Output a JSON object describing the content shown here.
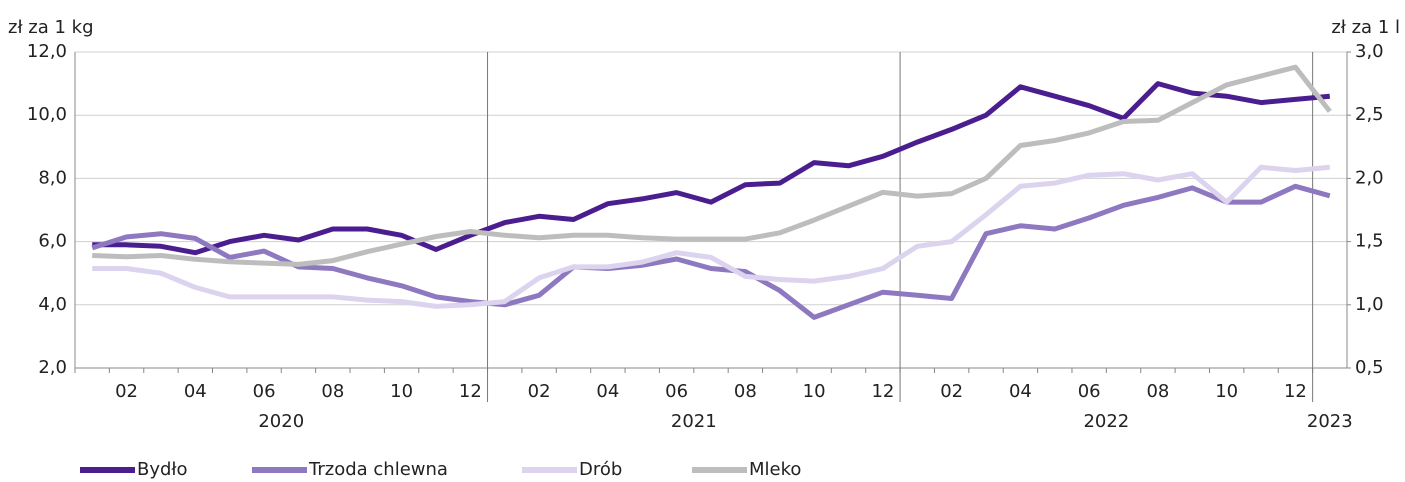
{
  "chart_data": {
    "type": "line",
    "ylabel": "zł za 1 kg",
    "y2label": "zł za 1 l",
    "categories": [
      null,
      "02",
      null,
      "04",
      null,
      "06",
      null,
      "08",
      null,
      "10",
      null,
      "12",
      null,
      "02",
      null,
      "04",
      null,
      "06",
      null,
      "08",
      null,
      "10",
      null,
      "12",
      null,
      "02",
      null,
      "04",
      null,
      "06",
      null,
      "08",
      null,
      "10",
      null,
      "12",
      null
    ],
    "years": [
      "2020",
      "2021",
      "2022",
      "2023"
    ],
    "ylim": [
      2,
      12
    ],
    "yticks": [
      {
        "value": 2,
        "label": "2,0"
      },
      {
        "value": 4,
        "label": "4,0"
      },
      {
        "value": 6,
        "label": "6,0"
      },
      {
        "value": 8,
        "label": "8,0"
      },
      {
        "value": 10,
        "label": "10,0"
      },
      {
        "value": 12,
        "label": "12,0"
      }
    ],
    "y2lim": [
      0.5,
      3
    ],
    "y2ticks": [
      {
        "value": 0.5,
        "label": "0,5"
      },
      {
        "value": 1,
        "label": "1,0"
      },
      {
        "value": 1.5,
        "label": "1,5"
      },
      {
        "value": 2,
        "label": "2,0"
      },
      {
        "value": 2.5,
        "label": "2,5"
      },
      {
        "value": 3,
        "label": "3,0"
      }
    ],
    "grid": true,
    "legend": "bottom",
    "series": [
      {
        "name": "Bydło",
        "color": "#4b1e8f",
        "values": [
          5.9,
          5.9,
          5.85,
          5.65,
          6.0,
          6.2,
          6.05,
          6.4,
          6.4,
          6.2,
          5.75,
          6.2,
          6.6,
          6.8,
          6.7,
          7.2,
          7.35,
          7.55,
          7.25,
          7.8,
          7.85,
          8.5,
          8.4,
          8.7,
          9.15,
          9.55,
          10.0,
          10.9,
          10.6,
          10.3,
          9.9,
          11.0,
          10.7,
          10.6,
          10.4,
          10.5,
          10.6
        ]
      },
      {
        "name": "Trzoda chlewna",
        "color": "#8e78c0",
        "values": [
          5.8,
          6.15,
          6.25,
          6.1,
          5.5,
          5.7,
          5.2,
          5.15,
          4.85,
          4.6,
          4.25,
          4.1,
          4.0,
          4.3,
          5.2,
          5.15,
          5.25,
          5.45,
          5.15,
          5.05,
          4.45,
          3.6,
          4.0,
          4.4,
          4.3,
          4.2,
          6.25,
          6.5,
          6.4,
          6.75,
          7.15,
          7.4,
          7.7,
          7.25,
          7.25,
          7.75,
          7.45
        ]
      },
      {
        "name": "Drób",
        "color": "#dcd3ee",
        "values": [
          5.15,
          5.15,
          5.0,
          4.55,
          4.25,
          4.25,
          4.25,
          4.25,
          4.15,
          4.1,
          3.95,
          4.0,
          4.1,
          4.85,
          5.2,
          5.2,
          5.35,
          5.65,
          5.5,
          4.9,
          4.8,
          4.75,
          4.9,
          5.15,
          5.85,
          6.0,
          6.85,
          7.75,
          7.85,
          8.1,
          8.15,
          7.95,
          8.15,
          7.25,
          8.35,
          8.25,
          8.35
        ]
      },
      {
        "name": "Mleko",
        "color": "#bdbdbd",
        "axis": "y2",
        "values": [
          1.39,
          1.38,
          1.39,
          1.36,
          1.34,
          1.33,
          1.32,
          1.35,
          1.42,
          1.48,
          1.54,
          1.58,
          1.55,
          1.53,
          1.55,
          1.55,
          1.53,
          1.52,
          1.52,
          1.52,
          1.57,
          1.67,
          1.78,
          1.89,
          1.86,
          1.88,
          2.0,
          2.26,
          2.3,
          2.36,
          2.45,
          2.46,
          2.6,
          2.74,
          2.81,
          2.88,
          2.53
        ]
      }
    ]
  }
}
